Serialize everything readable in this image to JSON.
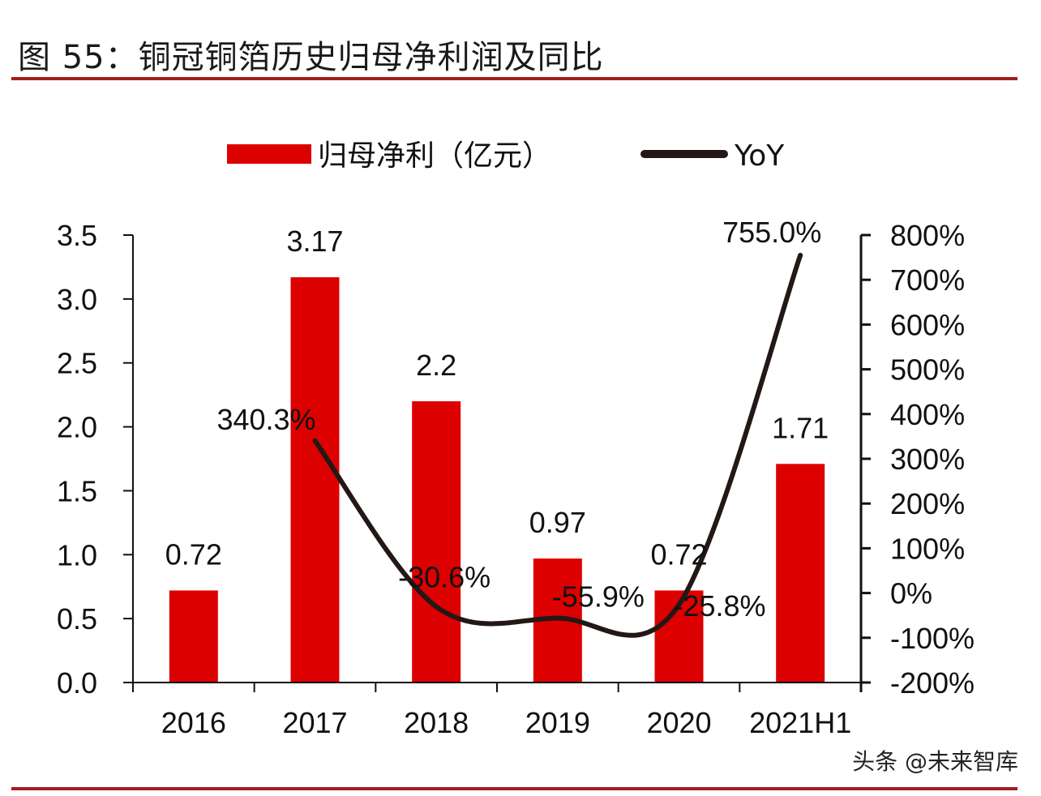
{
  "header": {
    "title": "图 55：铜冠铜箔历史归母净利润及同比"
  },
  "watermark": "头条 @未来智库",
  "colors": {
    "bar": "#dd0000",
    "line": "#231815",
    "rule": "#a51c1c",
    "axis": "#111111"
  },
  "chart_data": {
    "type": "bar+line",
    "title": "图 55：铜冠铜箔历史归母净利润及同比",
    "categories": [
      "2016",
      "2017",
      "2018",
      "2019",
      "2020",
      "2021H1"
    ],
    "series": [
      {
        "name": "归母净利（亿元）",
        "type": "bar",
        "axis": "left",
        "values": [
          0.72,
          3.17,
          2.2,
          0.97,
          0.72,
          1.71
        ],
        "labels": [
          "0.72",
          "3.17",
          "2.2",
          "0.97",
          "0.72",
          "1.71"
        ]
      },
      {
        "name": "YoY",
        "type": "line",
        "axis": "right",
        "smooth": true,
        "values": [
          null,
          340.3,
          -30.6,
          -55.9,
          -25.8,
          755.0
        ],
        "labels": [
          null,
          "340.3%",
          "-30.6%",
          "-55.9%",
          "-25.8%",
          "755.0%"
        ]
      }
    ],
    "legend": {
      "position": "top-center",
      "entries": [
        "归母净利（亿元）",
        "YoY"
      ]
    },
    "y_left": {
      "min": 0,
      "max": 3.5,
      "step": 0.5,
      "ticks": [
        "0.0",
        "0.5",
        "1.0",
        "1.5",
        "2.0",
        "2.5",
        "3.0",
        "3.5"
      ]
    },
    "y_right": {
      "min": -200,
      "max": 800,
      "step": 100,
      "ticks": [
        "-200%",
        "-100%",
        "0%",
        "100%",
        "200%",
        "300%",
        "400%",
        "500%",
        "600%",
        "700%",
        "800%"
      ]
    },
    "xlabel": "",
    "ylabel": "",
    "grid": false
  }
}
